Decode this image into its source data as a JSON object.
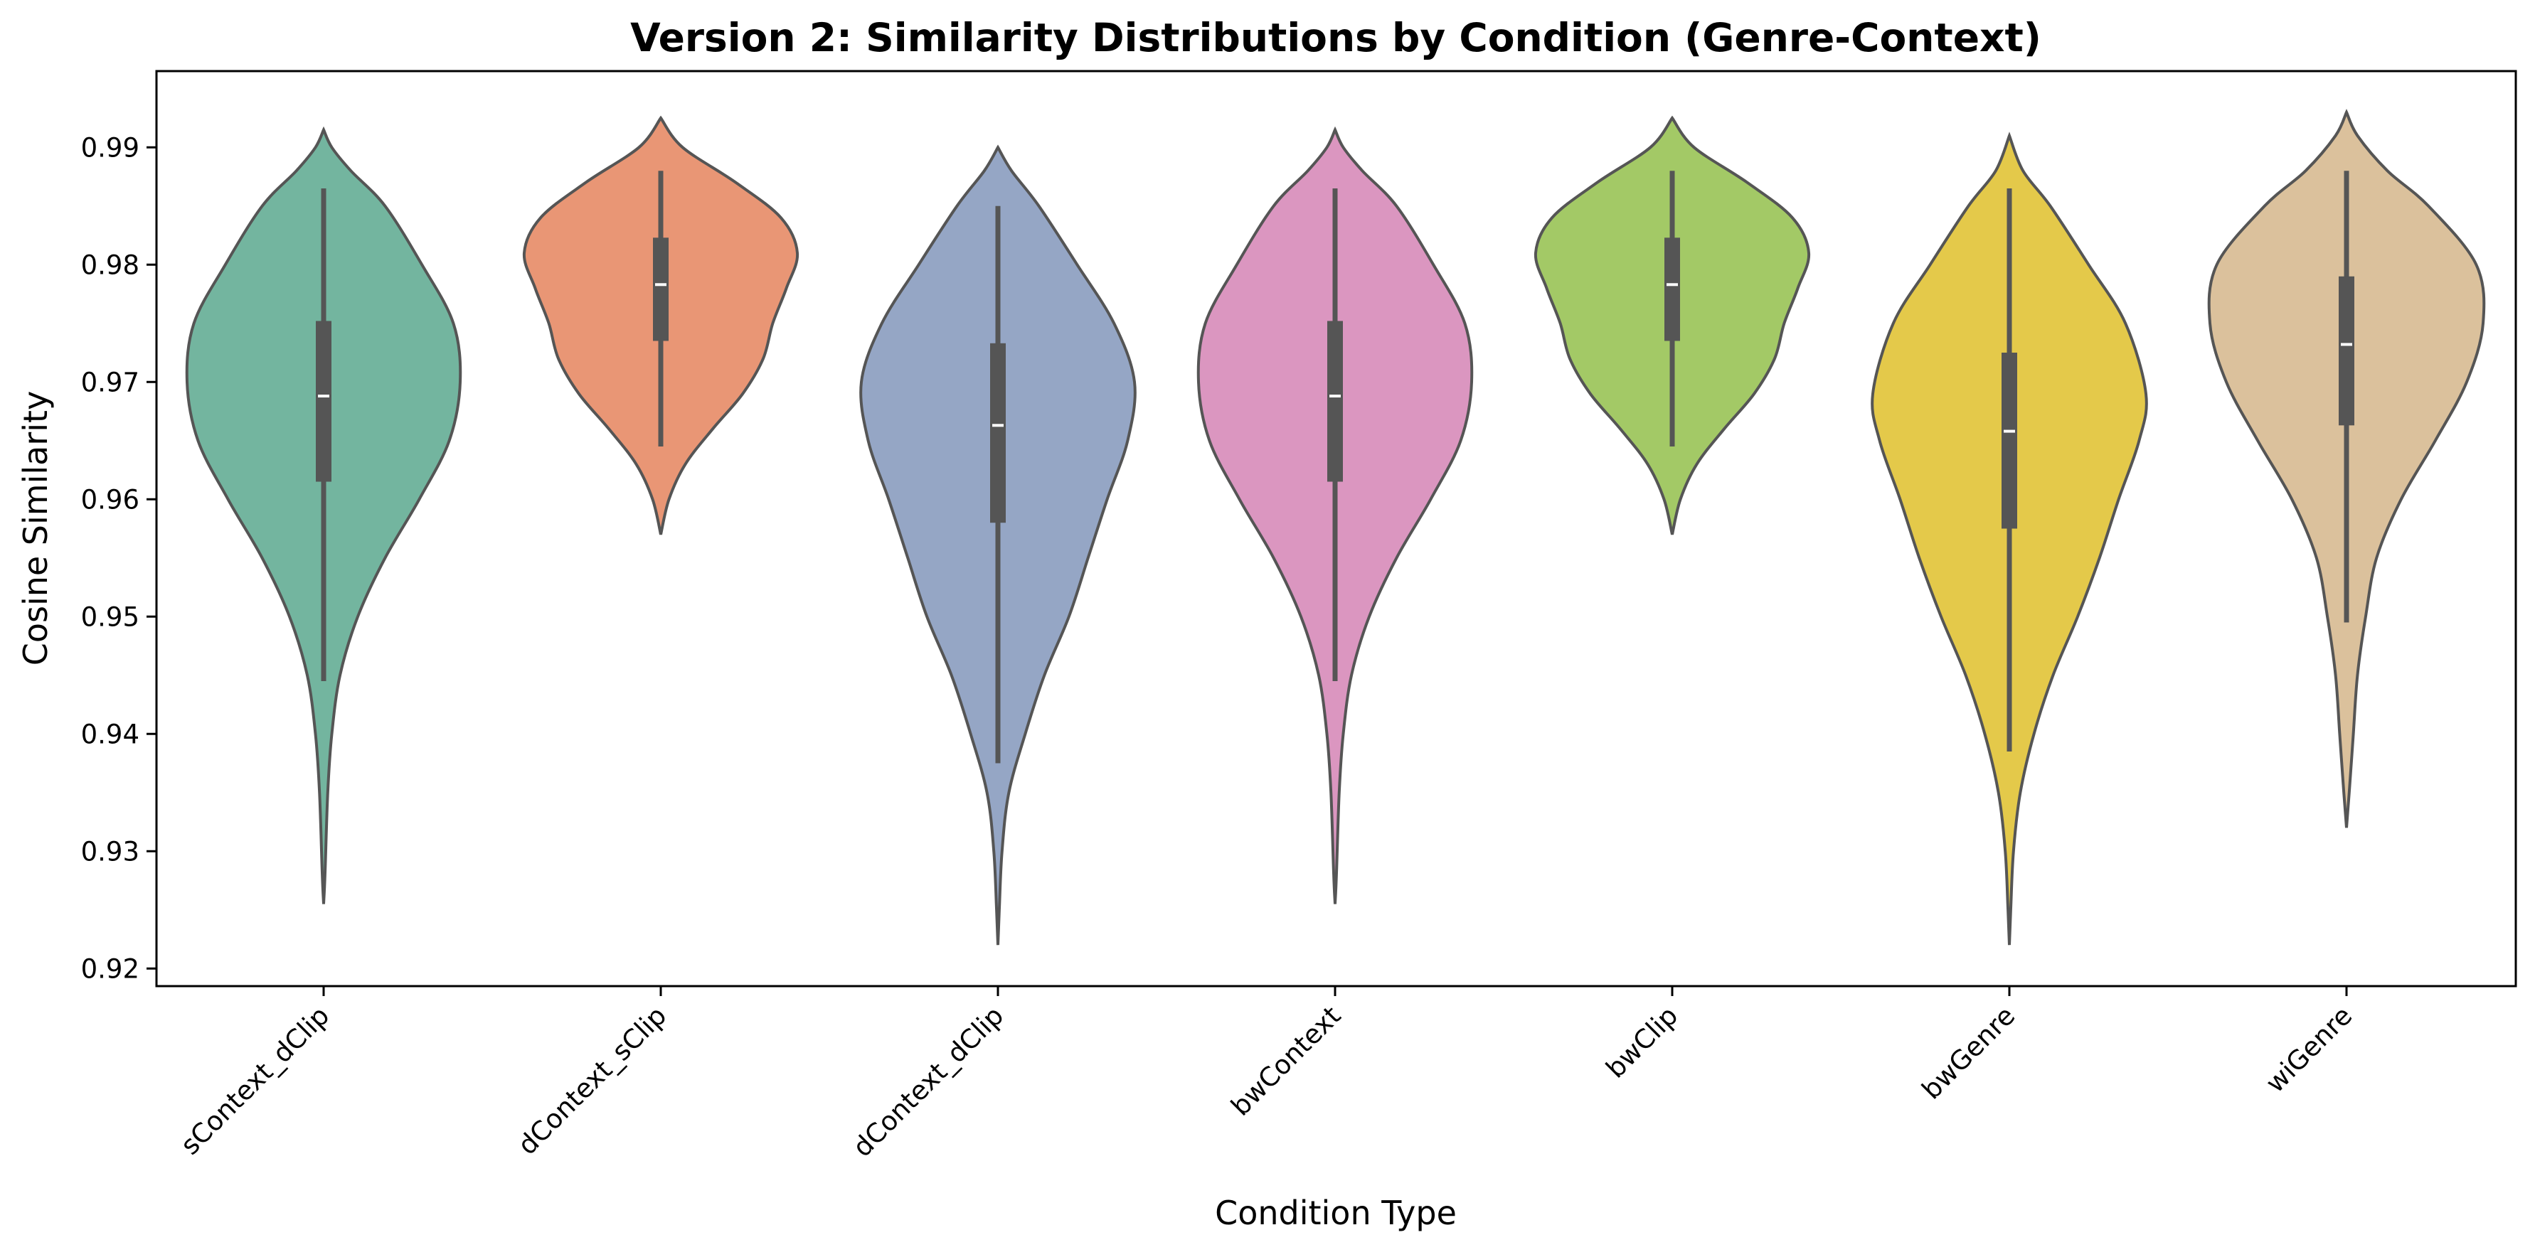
{
  "chart_data": {
    "type": "violin",
    "title": "Version 2: Similarity Distributions by Condition (Genre-Context)",
    "xlabel": "Condition Type",
    "ylabel": "Cosine Similarity",
    "ylim": [
      0.9185,
      0.9965
    ],
    "yticks": [
      0.92,
      0.93,
      0.94,
      0.95,
      0.96,
      0.97,
      0.98,
      0.99
    ],
    "ytick_labels": [
      "0.92",
      "0.93",
      "0.94",
      "0.95",
      "0.96",
      "0.97",
      "0.98",
      "0.99"
    ],
    "grid": false,
    "legend": "none",
    "categories": [
      "sContext_dClip",
      "dContext_sClip",
      "dContext_dClip",
      "bwContext",
      "bwClip",
      "bwGenre",
      "wiGenre"
    ],
    "series": [
      {
        "category": "sContext_dClip",
        "color": "#73b59f",
        "violin_range": [
          0.9255,
          0.9915
        ],
        "whisker": [
          0.9445,
          0.9865
        ],
        "q1": 0.9615,
        "median": 0.9688,
        "q3": 0.9752,
        "density": [
          [
            0.9255,
            0.0
          ],
          [
            0.928,
            0.01
          ],
          [
            0.935,
            0.03
          ],
          [
            0.94,
            0.06
          ],
          [
            0.945,
            0.12
          ],
          [
            0.95,
            0.25
          ],
          [
            0.955,
            0.45
          ],
          [
            0.96,
            0.7
          ],
          [
            0.965,
            0.92
          ],
          [
            0.97,
            1.0
          ],
          [
            0.975,
            0.95
          ],
          [
            0.98,
            0.72
          ],
          [
            0.985,
            0.45
          ],
          [
            0.988,
            0.2
          ],
          [
            0.99,
            0.06
          ],
          [
            0.9915,
            0.0
          ]
        ]
      },
      {
        "category": "dContext_sClip",
        "color": "#e99675",
        "violin_range": [
          0.957,
          0.9925
        ],
        "whisker": [
          0.9645,
          0.988
        ],
        "q1": 0.9735,
        "median": 0.9783,
        "q3": 0.9823,
        "density": [
          [
            0.957,
            0.0
          ],
          [
            0.96,
            0.06
          ],
          [
            0.963,
            0.18
          ],
          [
            0.966,
            0.38
          ],
          [
            0.969,
            0.6
          ],
          [
            0.972,
            0.75
          ],
          [
            0.975,
            0.82
          ],
          [
            0.978,
            0.92
          ],
          [
            0.981,
            1.0
          ],
          [
            0.984,
            0.88
          ],
          [
            0.987,
            0.55
          ],
          [
            0.99,
            0.16
          ],
          [
            0.9925,
            0.0
          ]
        ]
      },
      {
        "category": "dContext_dClip",
        "color": "#95a6c5",
        "violin_range": [
          0.922,
          0.99
        ],
        "whisker": [
          0.9375,
          0.985
        ],
        "q1": 0.958,
        "median": 0.9663,
        "q3": 0.9733,
        "density": [
          [
            0.922,
            0.0
          ],
          [
            0.925,
            0.01
          ],
          [
            0.93,
            0.03
          ],
          [
            0.935,
            0.08
          ],
          [
            0.94,
            0.2
          ],
          [
            0.945,
            0.34
          ],
          [
            0.95,
            0.52
          ],
          [
            0.955,
            0.66
          ],
          [
            0.96,
            0.8
          ],
          [
            0.965,
            0.95
          ],
          [
            0.97,
            1.0
          ],
          [
            0.975,
            0.85
          ],
          [
            0.98,
            0.58
          ],
          [
            0.985,
            0.3
          ],
          [
            0.988,
            0.1
          ],
          [
            0.99,
            0.0
          ]
        ]
      },
      {
        "category": "bwContext",
        "color": "#db96c0",
        "violin_range": [
          0.9255,
          0.9915
        ],
        "whisker": [
          0.9445,
          0.9865
        ],
        "q1": 0.9615,
        "median": 0.9688,
        "q3": 0.9752,
        "density": [
          [
            0.9255,
            0.0
          ],
          [
            0.928,
            0.01
          ],
          [
            0.935,
            0.03
          ],
          [
            0.94,
            0.06
          ],
          [
            0.945,
            0.12
          ],
          [
            0.95,
            0.25
          ],
          [
            0.955,
            0.45
          ],
          [
            0.96,
            0.7
          ],
          [
            0.965,
            0.92
          ],
          [
            0.97,
            1.0
          ],
          [
            0.975,
            0.95
          ],
          [
            0.98,
            0.72
          ],
          [
            0.985,
            0.45
          ],
          [
            0.988,
            0.2
          ],
          [
            0.99,
            0.06
          ],
          [
            0.9915,
            0.0
          ]
        ]
      },
      {
        "category": "bwClip",
        "color": "#a3c966",
        "violin_range": [
          0.957,
          0.9925
        ],
        "whisker": [
          0.9645,
          0.988
        ],
        "q1": 0.9735,
        "median": 0.9783,
        "q3": 0.9823,
        "density": [
          [
            0.957,
            0.0
          ],
          [
            0.96,
            0.06
          ],
          [
            0.963,
            0.18
          ],
          [
            0.966,
            0.38
          ],
          [
            0.969,
            0.6
          ],
          [
            0.972,
            0.75
          ],
          [
            0.975,
            0.82
          ],
          [
            0.978,
            0.92
          ],
          [
            0.981,
            1.0
          ],
          [
            0.984,
            0.88
          ],
          [
            0.987,
            0.55
          ],
          [
            0.99,
            0.16
          ],
          [
            0.9925,
            0.0
          ]
        ]
      },
      {
        "category": "bwGenre",
        "color": "#e4c94a",
        "violin_range": [
          0.922,
          0.991
        ],
        "whisker": [
          0.9385,
          0.9865
        ],
        "q1": 0.9575,
        "median": 0.9658,
        "q3": 0.9725,
        "density": [
          [
            0.922,
            0.0
          ],
          [
            0.925,
            0.01
          ],
          [
            0.93,
            0.03
          ],
          [
            0.935,
            0.08
          ],
          [
            0.94,
            0.18
          ],
          [
            0.945,
            0.32
          ],
          [
            0.95,
            0.5
          ],
          [
            0.955,
            0.66
          ],
          [
            0.96,
            0.8
          ],
          [
            0.965,
            0.95
          ],
          [
            0.969,
            1.0
          ],
          [
            0.975,
            0.85
          ],
          [
            0.98,
            0.58
          ],
          [
            0.985,
            0.3
          ],
          [
            0.988,
            0.1
          ],
          [
            0.991,
            0.0
          ]
        ]
      },
      {
        "category": "wiGenre",
        "color": "#dbc19c",
        "violin_range": [
          0.932,
          0.993
        ],
        "whisker": [
          0.9495,
          0.988
        ],
        "q1": 0.9663,
        "median": 0.9732,
        "q3": 0.979,
        "density": [
          [
            0.932,
            0.0
          ],
          [
            0.935,
            0.02
          ],
          [
            0.94,
            0.05
          ],
          [
            0.945,
            0.08
          ],
          [
            0.95,
            0.14
          ],
          [
            0.955,
            0.22
          ],
          [
            0.96,
            0.4
          ],
          [
            0.965,
            0.65
          ],
          [
            0.97,
            0.88
          ],
          [
            0.975,
            1.0
          ],
          [
            0.98,
            0.95
          ],
          [
            0.985,
            0.6
          ],
          [
            0.988,
            0.3
          ],
          [
            0.991,
            0.08
          ],
          [
            0.993,
            0.0
          ]
        ]
      }
    ]
  }
}
